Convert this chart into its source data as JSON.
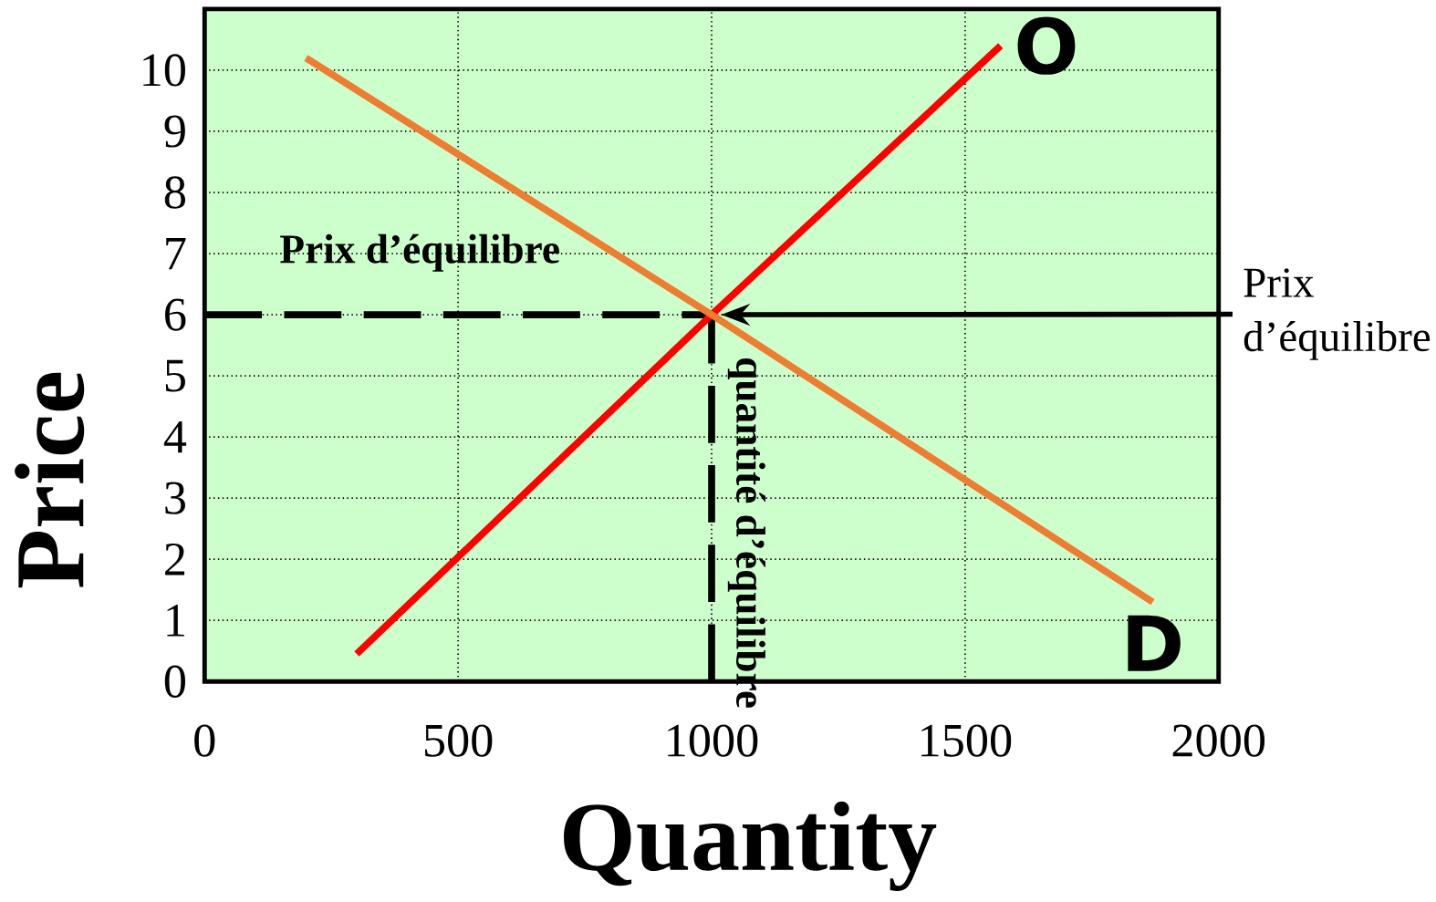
{
  "chart_data": {
    "type": "line",
    "xlabel": "Quantity",
    "ylabel": "Price",
    "xlim": [
      0,
      2000
    ],
    "ylim": [
      0,
      11
    ],
    "xticks": [
      0,
      500,
      1000,
      1500,
      2000
    ],
    "yticks": [
      0,
      1,
      2,
      3,
      4,
      5,
      6,
      7,
      8,
      9,
      10
    ],
    "grid": true,
    "series": [
      {
        "name": "O",
        "color": "#ff0000",
        "x": [
          300,
          1000,
          1570
        ],
        "values": [
          0.45,
          6,
          10.4
        ]
      },
      {
        "name": "D",
        "color": "#ed7d31",
        "x": [
          200,
          1000,
          1870
        ],
        "values": [
          10.2,
          6,
          1.3
        ]
      }
    ],
    "ref_lines": [
      {
        "axis": "y",
        "value": 6,
        "label": "Prix d’équilibre",
        "color": "#000000",
        "line_style": "dashed"
      },
      {
        "axis": "x",
        "value": 1000,
        "label": "quantité d’équilibre",
        "color": "#000000",
        "line_style": "dashed"
      }
    ],
    "annotations": [
      "Prix d’équilibre"
    ]
  }
}
